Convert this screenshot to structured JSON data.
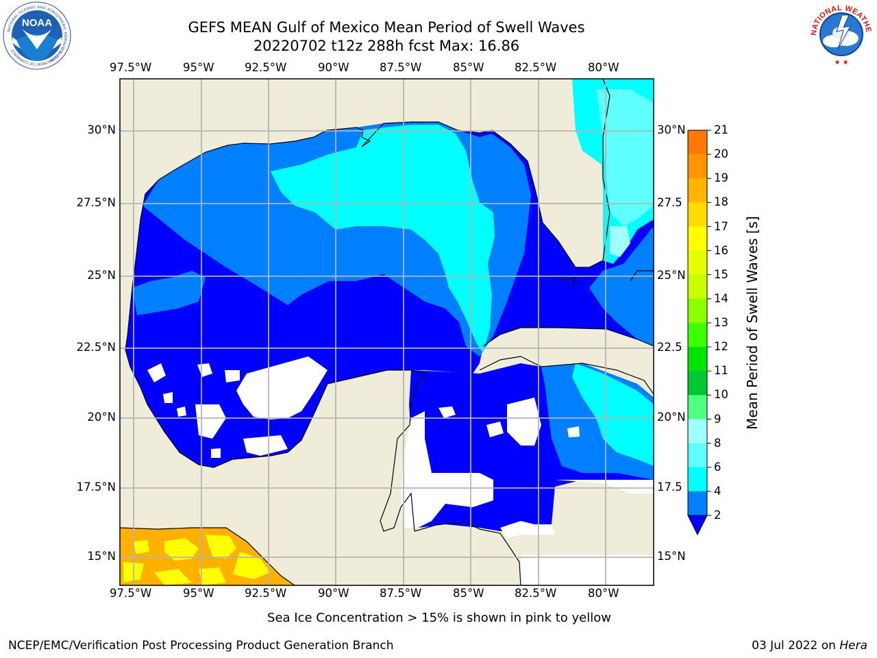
{
  "header": {
    "title_line1": "GEFS MEAN Gulf of Mexico Mean Period of Swell Waves",
    "title_line2": "20220702 t12z 288h fcst   Max: 16.86"
  },
  "logos": {
    "left": {
      "name": "NOAA",
      "ring_text": "NATIONAL OCEANIC AND ATMOSPHERIC ADMINISTRATION",
      "ring_text_bottom": "U.S. DEPARTMENT OF COMMERCE"
    },
    "right": {
      "ring_text": "NATIONAL WEATHER SERVICE"
    }
  },
  "map": {
    "lon_labels": [
      "97.5°W",
      "95°W",
      "92.5°W",
      "90°W",
      "87.5°W",
      "85°W",
      "82.5°W",
      "80°W"
    ],
    "lat_labels_left": [
      "30°N",
      "27.5°N",
      "25°N",
      "22.5°N",
      "20°N",
      "17.5°N",
      "15°N"
    ],
    "lat_labels_right": [
      "30°N",
      "27.5",
      "25°N",
      "22.5",
      "20°N",
      "17.5",
      "15°N"
    ],
    "colors": {
      "land": "#efedda",
      "level_2": "#0000ff",
      "level_4": "#0080ff",
      "level_6": "#00ffff",
      "level_8": "#60ffff",
      "level_9": "#a0ffff",
      "ice_orange": "#ffb000",
      "ice_yellow": "#ffff00",
      "grid": "#b4b4b4"
    }
  },
  "colorbar": {
    "label": "Mean Period of Swell Waves [s]",
    "ticks": [
      "21",
      "20",
      "19",
      "18",
      "17",
      "16",
      "15",
      "14",
      "13",
      "12",
      "11",
      "10",
      "9",
      "8",
      "6",
      "4",
      "2"
    ],
    "colors_top_to_bottom": [
      "#ff0000",
      "#ff2800",
      "#ff5000",
      "#ff7800",
      "#ff9600",
      "#ffb400",
      "#ffdc00",
      "#ffff00",
      "#e6ff00",
      "#c8ff00",
      "#8cff00",
      "#3cff00",
      "#00e600",
      "#00c832",
      "#50ff80",
      "#a0ffff",
      "#60ffff",
      "#00ffff",
      "#0080ff"
    ],
    "under_color": "#0000ff"
  },
  "footer": {
    "ice_note": "Sea Ice Concentration > 15% is shown in pink to yellow",
    "branch": "NCEP/EMC/Verification Post Processing Product Generation Branch",
    "date_prefix": "03 Jul 2022 on ",
    "date_host": "Hera"
  }
}
